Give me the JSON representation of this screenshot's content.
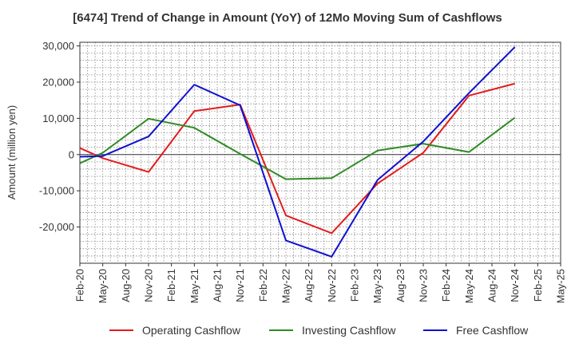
{
  "chart_data": {
    "type": "line",
    "title": "[6474]  Trend of Change in Amount (YoY) of 12Mo Moving Sum of Cashflows",
    "xlabel": "",
    "ylabel": "Amount (million yen)",
    "ylim": [
      -30000,
      31000
    ],
    "yticks": [
      30000,
      20000,
      10000,
      0,
      -10000,
      -20000
    ],
    "ytick_labels": [
      "30,000",
      "20,000",
      "10,000",
      "0",
      "-10,000",
      "-20,000"
    ],
    "categories": [
      "Feb-20",
      "May-20",
      "Aug-20",
      "Nov-20",
      "Feb-21",
      "May-21",
      "Aug-21",
      "Nov-21",
      "Feb-22",
      "May-22",
      "Aug-22",
      "Nov-22",
      "Feb-23",
      "May-23",
      "Aug-23",
      "Nov-23",
      "Feb-24",
      "May-24",
      "Aug-24",
      "Nov-24",
      "Feb-25",
      "May-25"
    ],
    "grid": true,
    "legend_position": "bottom",
    "series": [
      {
        "name": "Operating Cashflow",
        "color": "#e31a1c",
        "values": [
          1800,
          -1000,
          null,
          -4800,
          null,
          12000,
          null,
          13800,
          null,
          -16800,
          null,
          -21700,
          null,
          -8000,
          null,
          500,
          null,
          16300,
          null,
          19600,
          null,
          null
        ]
      },
      {
        "name": "Investing Cashflow",
        "color": "#2e8b22",
        "values": [
          -2400,
          500,
          null,
          9900,
          null,
          7400,
          null,
          200,
          null,
          -6800,
          null,
          -6500,
          null,
          1100,
          null,
          3000,
          null,
          700,
          null,
          10200,
          null,
          null
        ]
      },
      {
        "name": "Free Cashflow",
        "color": "#1010d0",
        "values": [
          -600,
          -400,
          null,
          5000,
          null,
          19300,
          null,
          13600,
          null,
          -23700,
          null,
          -28200,
          null,
          -7000,
          null,
          3600,
          null,
          17000,
          null,
          29700,
          null,
          null
        ]
      }
    ]
  }
}
